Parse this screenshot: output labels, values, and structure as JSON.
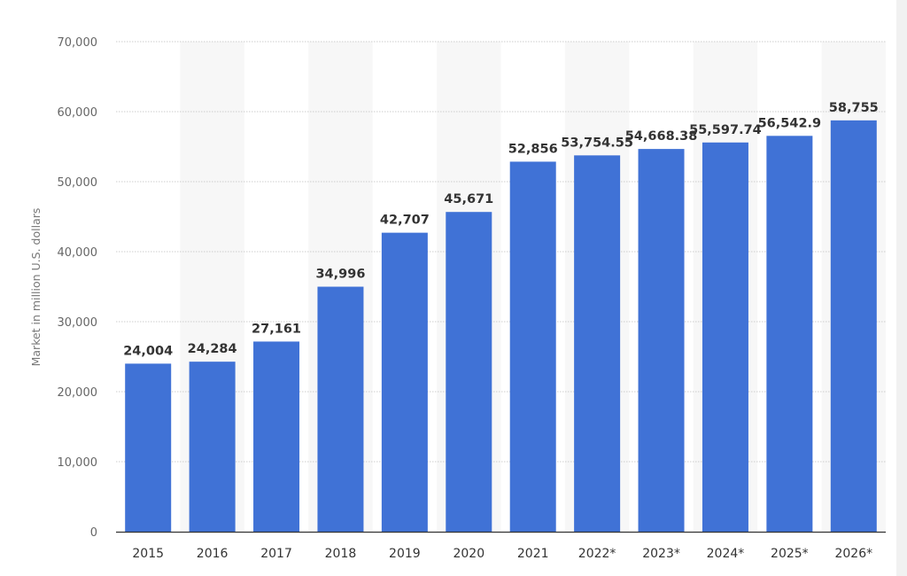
{
  "chart_data": {
    "type": "bar",
    "title": "",
    "xlabel": "",
    "ylabel": "Market in million U.S. dollars",
    "ylim": [
      0,
      70000
    ],
    "yticks": [
      0,
      10000,
      20000,
      30000,
      40000,
      50000,
      60000,
      70000
    ],
    "ytick_labels": [
      "0",
      "10,000",
      "20,000",
      "30,000",
      "40,000",
      "50,000",
      "60,000",
      "70,000"
    ],
    "grid": true,
    "categories": [
      "2015",
      "2016",
      "2017",
      "2018",
      "2019",
      "2020",
      "2021",
      "2022*",
      "2023*",
      "2024*",
      "2025*",
      "2026*"
    ],
    "values": [
      24004,
      24284,
      27161,
      34996,
      42707,
      45671,
      52856,
      53754.55,
      54668.38,
      55597.74,
      56542.9,
      58755
    ],
    "data_labels": [
      "24,004",
      "24,284",
      "27,161",
      "34,996",
      "42,707",
      "45,671",
      "52,856",
      "53,754.55",
      "54,668.38",
      "55,597.74",
      "56,542.9",
      "58,755"
    ],
    "bar_color": "#4072d6",
    "stripe_color": "#f7f7f7"
  }
}
